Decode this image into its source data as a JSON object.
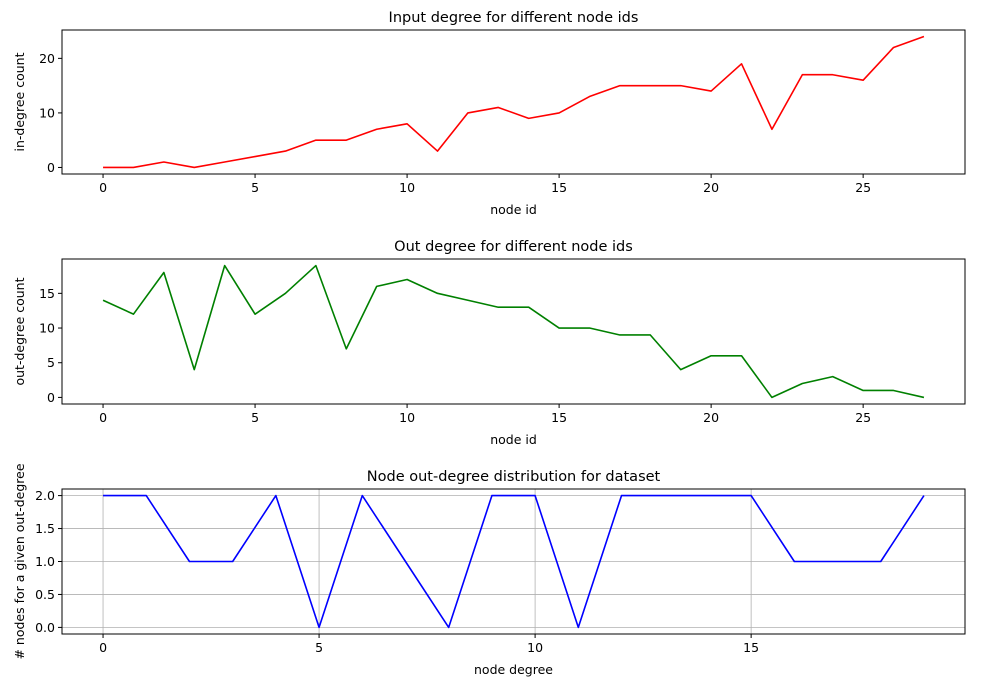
{
  "chart_data": [
    {
      "type": "line",
      "title": "Input degree for different node ids",
      "xlabel": "node id",
      "ylabel": "in-degree count",
      "xlim": [
        0,
        27
      ],
      "ylim": [
        0,
        24
      ],
      "xticks": [
        0,
        5,
        10,
        15,
        20,
        25
      ],
      "yticks": [
        0,
        10,
        20
      ],
      "grid": false,
      "color": "#ff0000",
      "series": [
        {
          "x": [
            0,
            1,
            2,
            3,
            4,
            5,
            6,
            7,
            8,
            9,
            10,
            11,
            12,
            13,
            14,
            15,
            16,
            17,
            18,
            19,
            20,
            21,
            22,
            23,
            24,
            25,
            26,
            27
          ],
          "values": [
            0,
            0,
            1,
            0,
            1,
            2,
            3,
            5,
            5,
            7,
            8,
            3,
            10,
            11,
            9,
            10,
            13,
            15,
            15,
            15,
            14,
            19,
            7,
            17,
            17,
            16,
            22,
            24
          ]
        }
      ]
    },
    {
      "type": "line",
      "title": "Out degree for different node ids",
      "xlabel": "node id",
      "ylabel": "out-degree count",
      "xlim": [
        0,
        27
      ],
      "ylim": [
        0,
        19
      ],
      "xticks": [
        0,
        5,
        10,
        15,
        20,
        25
      ],
      "yticks": [
        0,
        5,
        10,
        15
      ],
      "grid": false,
      "color": "#008000",
      "series": [
        {
          "x": [
            0,
            1,
            2,
            3,
            4,
            5,
            6,
            7,
            8,
            9,
            10,
            11,
            12,
            13,
            14,
            15,
            16,
            17,
            18,
            19,
            20,
            21,
            22,
            23,
            24,
            25,
            26,
            27
          ],
          "values": [
            14,
            12,
            18,
            4,
            19,
            12,
            15,
            19,
            7,
            16,
            17,
            15,
            14,
            13,
            13,
            10,
            10,
            9,
            9,
            4,
            6,
            6,
            0,
            2,
            3,
            1,
            1,
            0
          ]
        }
      ]
    },
    {
      "type": "line",
      "title": "Node out-degree distribution for dataset",
      "xlabel": "node degree",
      "ylabel": "# nodes for a given out-degree",
      "xlim": [
        0,
        19
      ],
      "ylim": [
        0,
        2
      ],
      "xticks": [
        0,
        5,
        10,
        15
      ],
      "yticks": [
        "0.0",
        "0.5",
        "1.0",
        "1.5",
        "2.0"
      ],
      "grid": true,
      "color": "#0000ff",
      "series": [
        {
          "x": [
            0,
            1,
            2,
            3,
            4,
            5,
            6,
            7,
            8,
            9,
            10,
            11,
            12,
            13,
            14,
            15,
            16,
            17,
            18,
            19
          ],
          "values": [
            2,
            2,
            1,
            1,
            2,
            0,
            2,
            1,
            0,
            2,
            2,
            0,
            2,
            2,
            2,
            2,
            1,
            1,
            1,
            2
          ]
        }
      ]
    }
  ]
}
